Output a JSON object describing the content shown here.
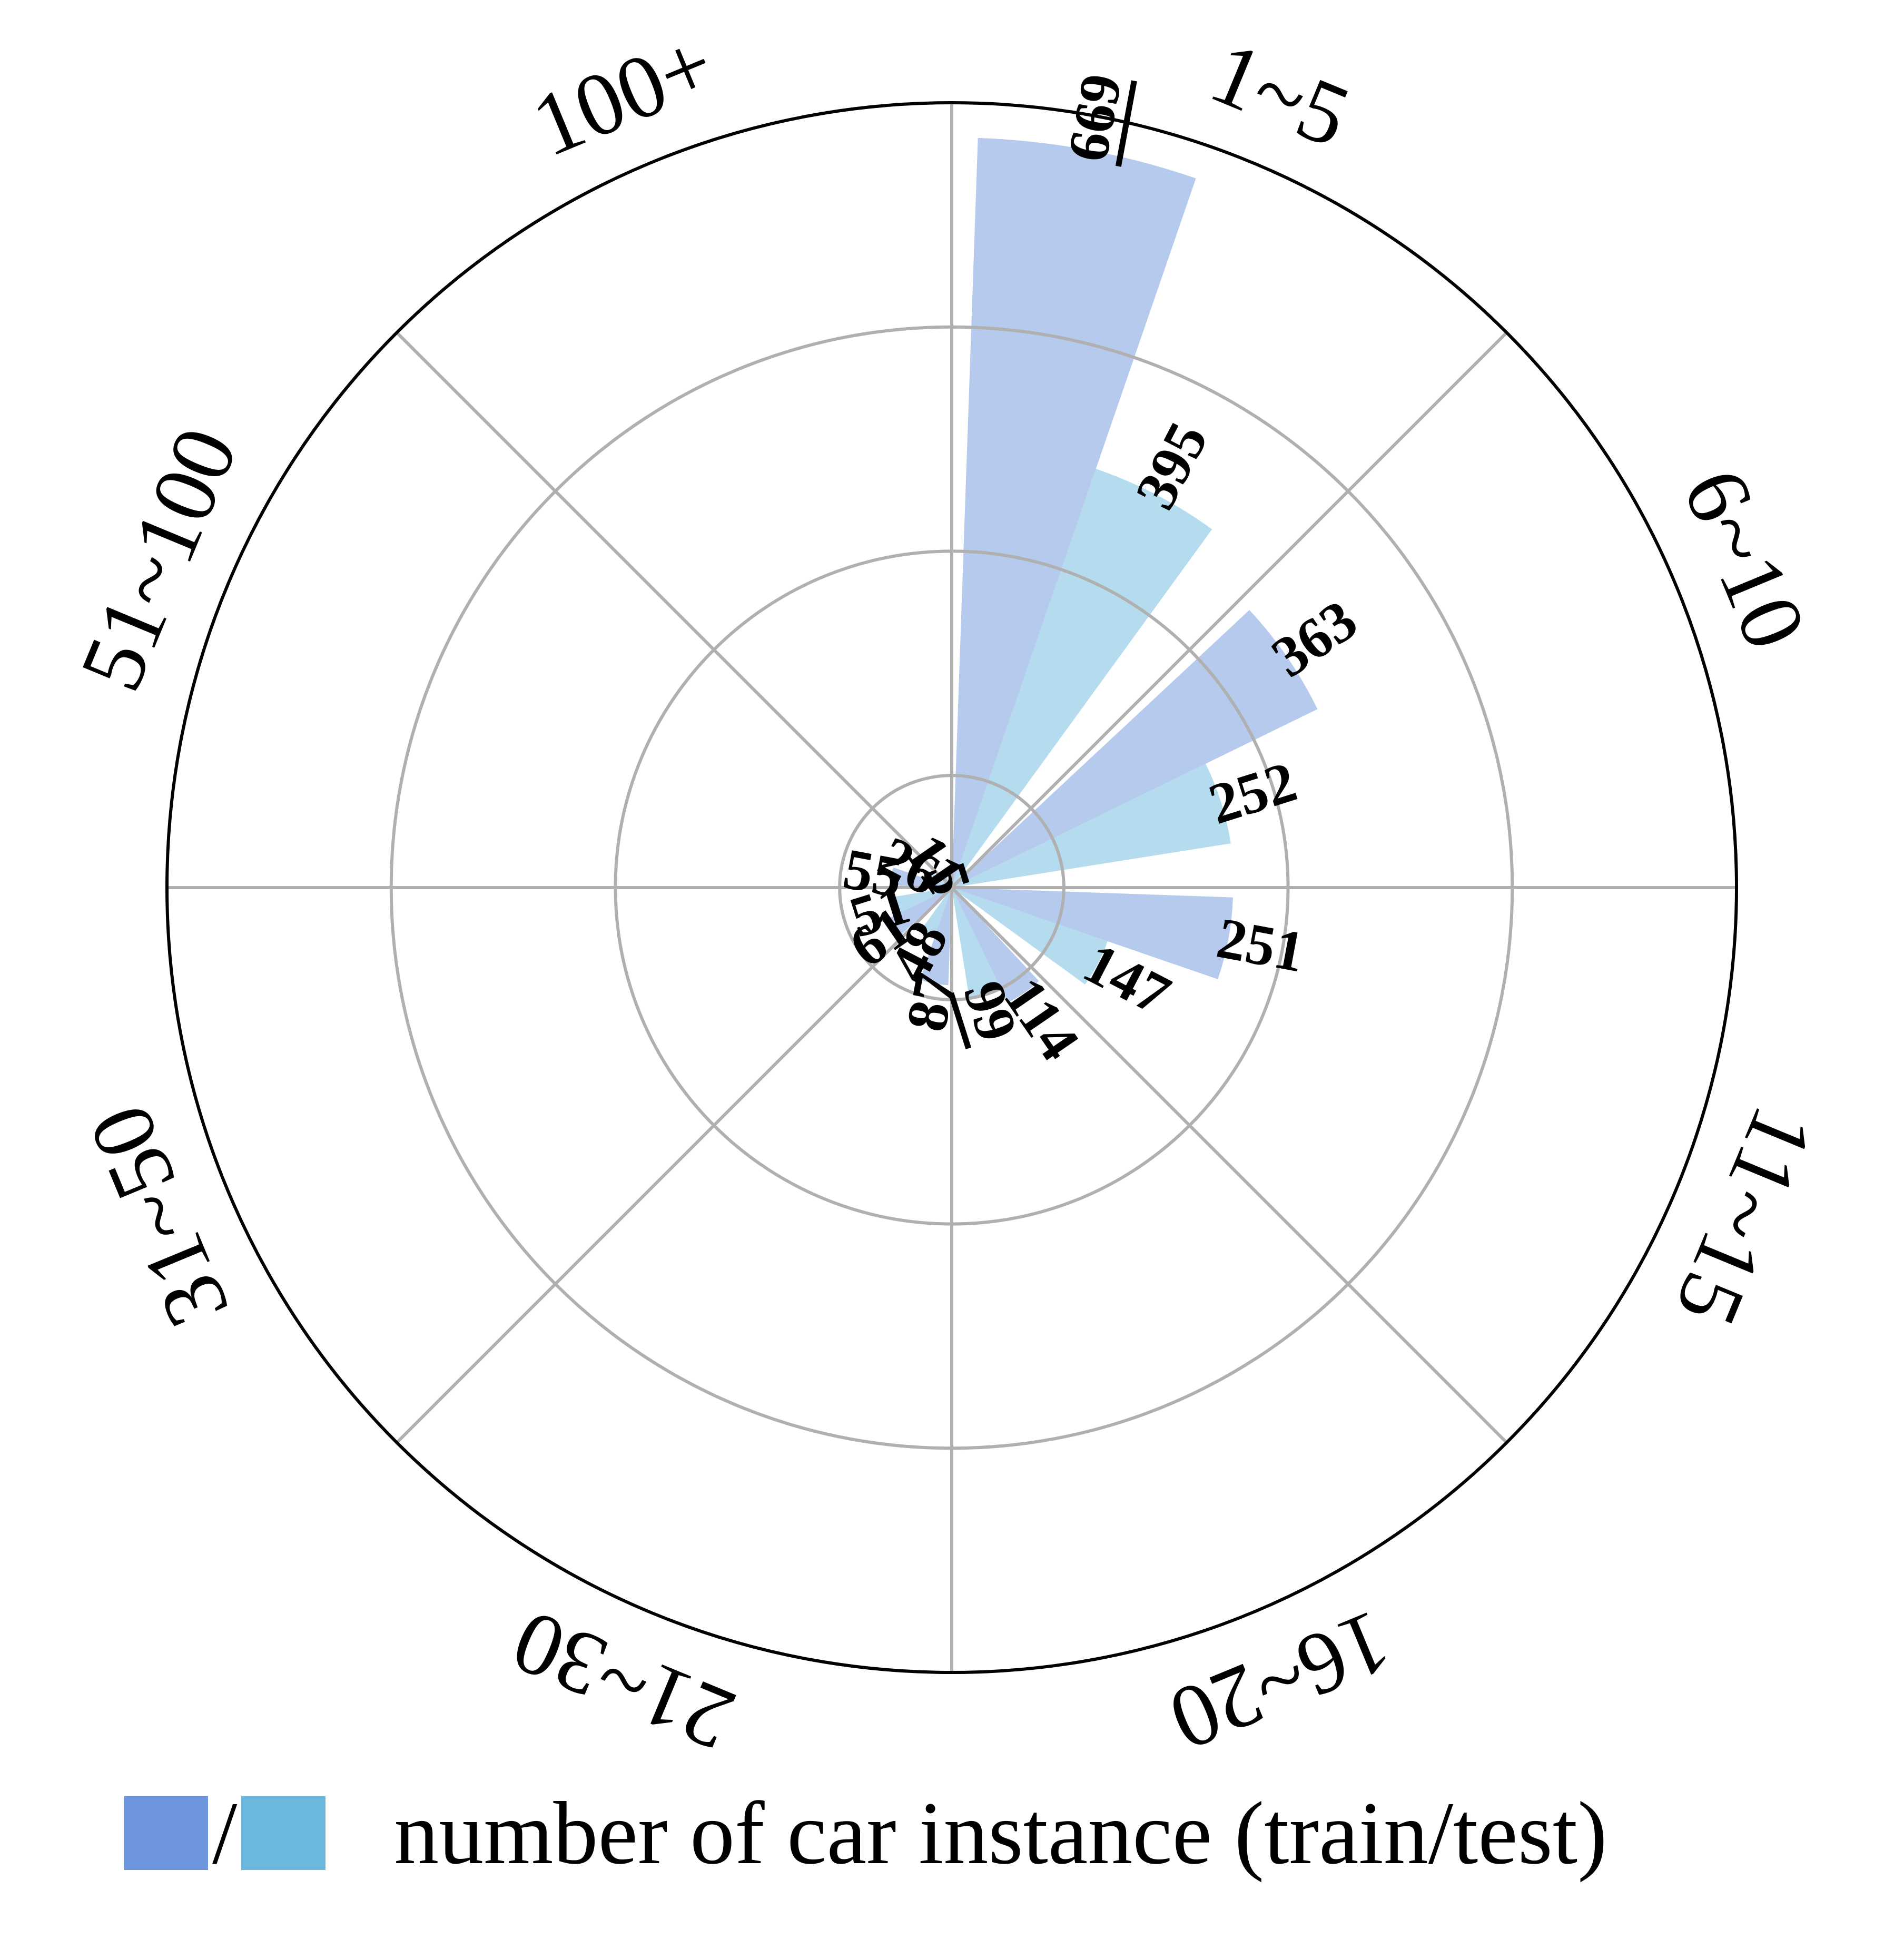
{
  "chart_data": {
    "type": "polar-bar",
    "categories": [
      "1~5",
      "6~10",
      "11~15",
      "16~20",
      "21~30",
      "31~50",
      "51~100",
      "100+"
    ],
    "series": [
      {
        "values": [
          669,
          363,
          251,
          114,
          87,
          61,
          55,
          11
        ],
        "color": "#6d95dd"
      },
      {
        "values": [
          395,
          252,
          147,
          99,
          48,
          51,
          26,
          5
        ],
        "color": "#6ab8dd"
      }
    ],
    "underlined_values": [
      "669",
      "99"
    ],
    "rlim": [
      0,
      700
    ],
    "grid": true,
    "legend": {
      "label": "number of car instance (train/test)",
      "separator": "/",
      "placement": "bottom"
    }
  }
}
